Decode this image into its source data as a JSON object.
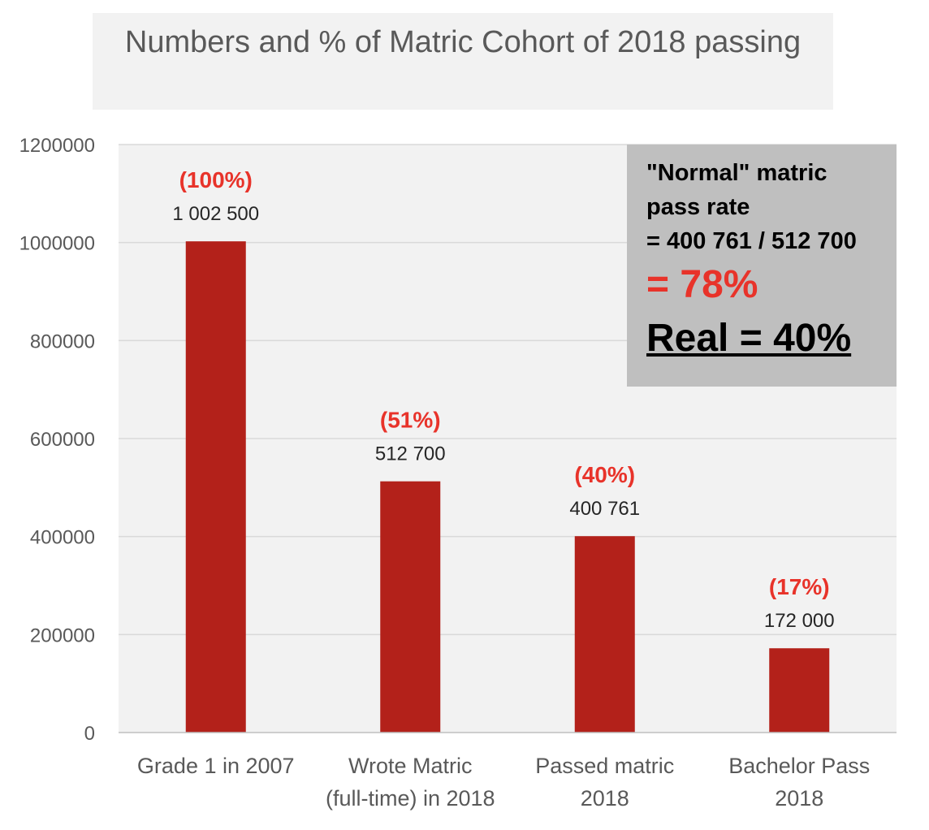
{
  "chart_data": {
    "type": "bar",
    "title": "Numbers and % of Matric Cohort of 2018 passing",
    "categories": [
      [
        "Grade 1 in 2007"
      ],
      [
        "Wrote Matric",
        "(full-time) in 2018"
      ],
      [
        "Passed matric",
        "2018"
      ],
      [
        "Bachelor Pass",
        "2018"
      ]
    ],
    "values": [
      1002500,
      512700,
      400761,
      172000
    ],
    "value_labels": [
      "1 002 500",
      "512 700",
      "400 761",
      "172 000"
    ],
    "percent_labels": [
      "(100%)",
      "(51%)",
      "(40%)",
      "(17%)"
    ],
    "yticks": [
      0,
      200000,
      400000,
      600000,
      800000,
      1000000,
      1200000
    ],
    "ylim": [
      0,
      1200000
    ],
    "grid": true,
    "xlabel": "",
    "ylabel": ""
  },
  "callout": {
    "line1": "\"Normal\" matric",
    "line2": "pass rate",
    "line3": "= 400 761 / 512 700",
    "percent": "= 78%",
    "real": "Real = 40%"
  },
  "colors": {
    "bar": "#b3211a",
    "percent_label": "#e8332a",
    "plot_bg": "#f2f2f2",
    "grid": "#d9d9d9",
    "axis_text": "#595959",
    "callout_bg": "#bfbfbf"
  }
}
